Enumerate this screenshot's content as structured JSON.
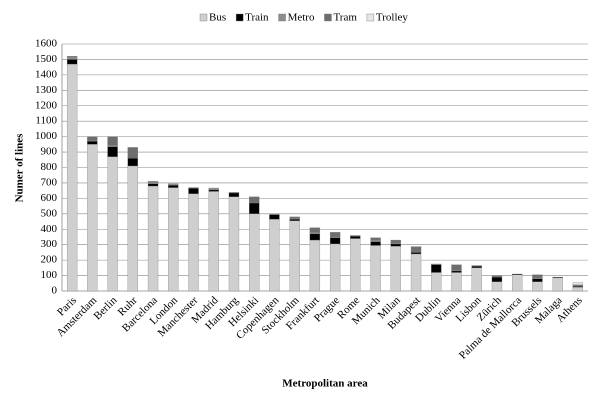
{
  "chart_data": {
    "type": "stacked_bar",
    "x_label": "Metropolitan area",
    "y_label": "Numer of lines",
    "categories": [
      "Paris",
      "Amsterdam",
      "Berlin",
      "Ruhr",
      "Barcelona",
      "London",
      "Manchester",
      "Madrid",
      "Hamburg",
      "Helsinki",
      "Copenhagen",
      "Stockholm",
      "Frankfurt",
      "Prague",
      "Rome",
      "Munich",
      "Milan",
      "Budapest",
      "Dublin",
      "Vienna",
      "Lisbon",
      "Zürich",
      "Palma de Mallorca",
      "Brussels",
      "Malaga",
      "Athens"
    ],
    "series": [
      {
        "name": "Bus",
        "color": "#cfcfcf",
        "values": [
          1470,
          950,
          870,
          810,
          680,
          670,
          630,
          645,
          610,
          500,
          465,
          455,
          330,
          305,
          340,
          295,
          290,
          240,
          120,
          120,
          150,
          60,
          105,
          60,
          85,
          25
        ]
      },
      {
        "name": "Train",
        "color": "#000000",
        "values": [
          30,
          20,
          65,
          50,
          15,
          15,
          35,
          10,
          25,
          70,
          30,
          10,
          40,
          40,
          15,
          25,
          15,
          10,
          50,
          10,
          10,
          30,
          5,
          20,
          5,
          5
        ]
      },
      {
        "name": "Metro",
        "color": "#8c8c8c",
        "values": [
          16,
          5,
          10,
          0,
          10,
          10,
          0,
          12,
          5,
          2,
          5,
          5,
          10,
          5,
          5,
          10,
          5,
          5,
          0,
          5,
          0,
          0,
          0,
          5,
          0,
          5
        ]
      },
      {
        "name": "Tram",
        "color": "#6e6e6e",
        "values": [
          5,
          25,
          55,
          70,
          5,
          0,
          5,
          0,
          0,
          38,
          0,
          10,
          30,
          30,
          0,
          15,
          20,
          30,
          5,
          35,
          5,
          10,
          0,
          20,
          0,
          5
        ]
      },
      {
        "name": "Trolley",
        "color": "#e6e6e6",
        "values": [
          0,
          0,
          0,
          0,
          0,
          0,
          0,
          0,
          0,
          0,
          0,
          0,
          0,
          0,
          0,
          0,
          0,
          5,
          0,
          0,
          0,
          0,
          0,
          0,
          0,
          15
        ]
      }
    ],
    "ylim": [
      0,
      1600
    ],
    "yticks": [
      0,
      100,
      200,
      300,
      400,
      500,
      600,
      700,
      800,
      900,
      1000,
      1100,
      1200,
      1300,
      1400,
      1500,
      1600
    ],
    "grid": true
  }
}
